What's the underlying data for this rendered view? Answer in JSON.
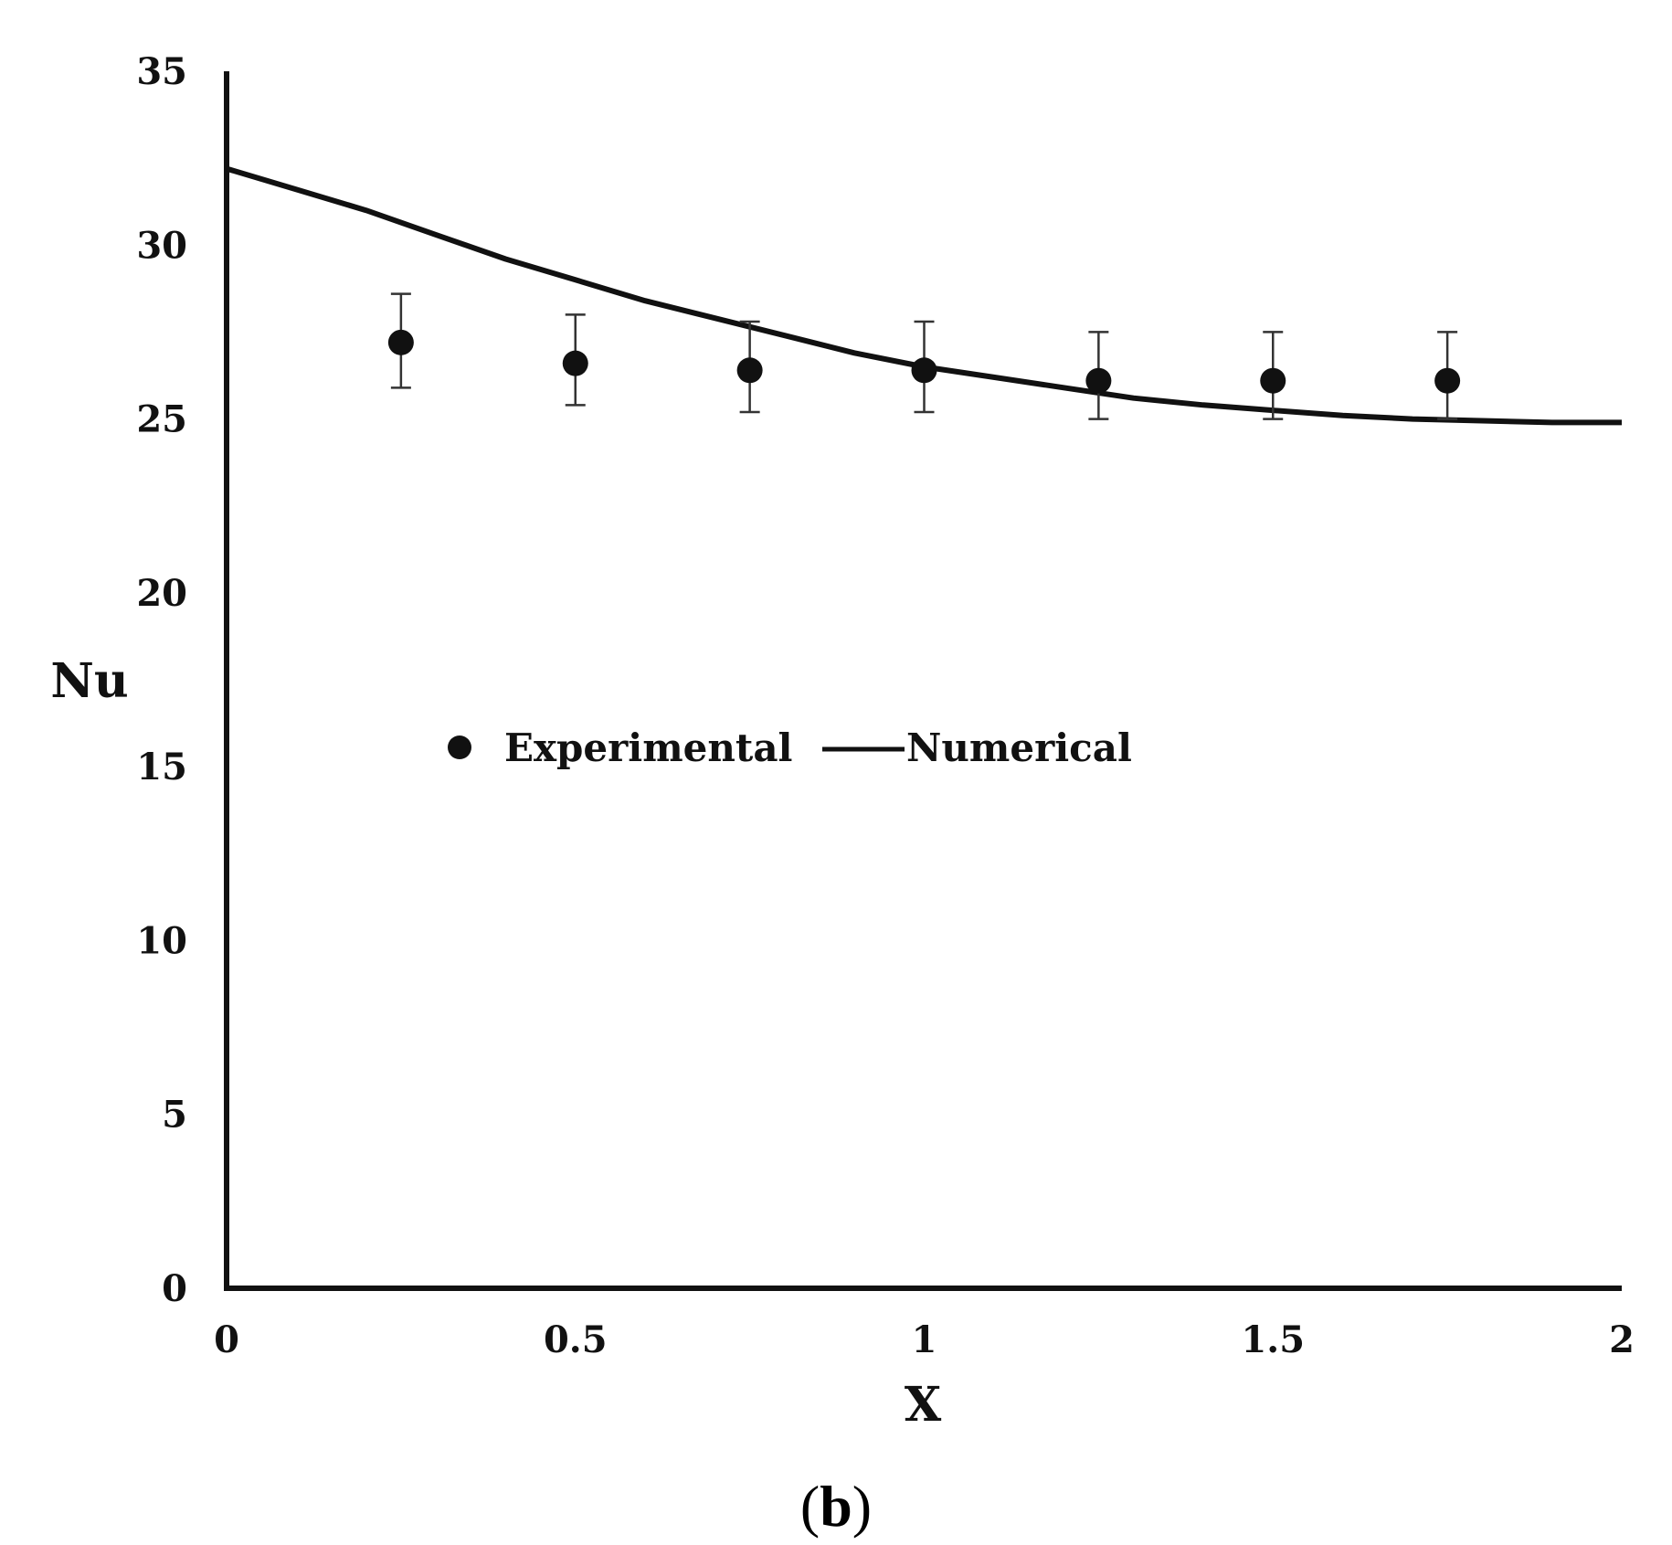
{
  "chart_data": {
    "type": "scatter",
    "title": "",
    "xlabel": "X",
    "ylabel": "Nu",
    "xlim": [
      0,
      2
    ],
    "ylim": [
      0,
      35
    ],
    "x_ticks": [
      0,
      0.5,
      1,
      1.5,
      2
    ],
    "x_tick_labels": [
      "0",
      "0.5",
      "1",
      "1.5",
      "2"
    ],
    "y_ticks": [
      0,
      5,
      10,
      15,
      20,
      25,
      30,
      35
    ],
    "y_tick_labels": [
      "0",
      "5",
      "10",
      "15",
      "20",
      "25",
      "30",
      "35"
    ],
    "grid": false,
    "legend_position": "center-left",
    "series": [
      {
        "name": "Experimental",
        "kind": "scatter-errorbar",
        "x": [
          0.25,
          0.5,
          0.75,
          1.0,
          1.25,
          1.5,
          1.75
        ],
        "y": [
          27.2,
          26.6,
          26.4,
          26.4,
          26.1,
          26.1,
          26.1
        ],
        "y_lower": [
          25.9,
          25.4,
          25.2,
          25.2,
          25.0,
          25.0,
          25.0
        ],
        "y_upper": [
          28.6,
          28.0,
          27.8,
          27.8,
          27.5,
          27.5,
          27.5
        ]
      },
      {
        "name": "Numerical",
        "kind": "line",
        "x": [
          0,
          0.1,
          0.2,
          0.3,
          0.4,
          0.5,
          0.6,
          0.7,
          0.8,
          0.9,
          1.0,
          1.1,
          1.2,
          1.3,
          1.4,
          1.5,
          1.6,
          1.7,
          1.8,
          1.9,
          2.0
        ],
        "y": [
          32.2,
          31.6,
          31.0,
          30.3,
          29.6,
          29.0,
          28.4,
          27.9,
          27.4,
          26.9,
          26.5,
          26.2,
          25.9,
          25.6,
          25.4,
          25.25,
          25.1,
          25.0,
          24.95,
          24.9,
          24.9
        ]
      }
    ]
  },
  "caption": {
    "open": "(",
    "letter": "b",
    "close": ")"
  }
}
